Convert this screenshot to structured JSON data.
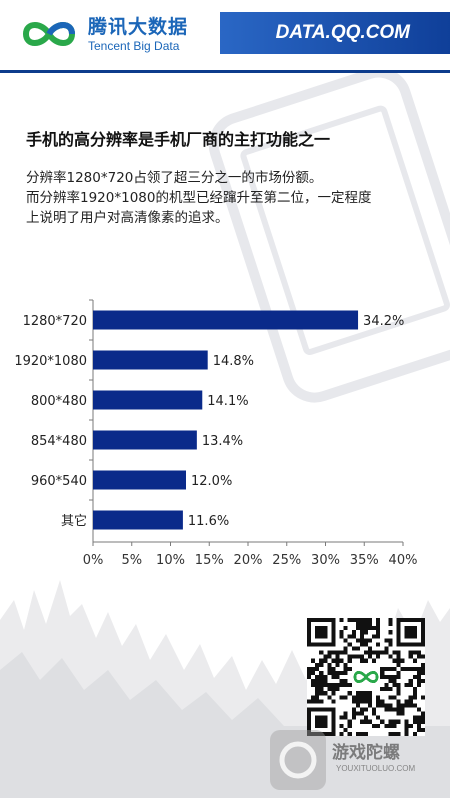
{
  "header": {
    "brand_cn": "腾讯大数据",
    "brand_en": "Tencent Big Data",
    "site": "DATA.QQ.COM"
  },
  "title": "手机的高分辨率是手机厂商的主打功能之一",
  "description": [
    "分辨率1280*720占领了超三分之一的市场份额。",
    "而分辨率1920*1080的机型已经蹿升至第二位，一定程度",
    "上说明了用户对高清像素的追求。"
  ],
  "chart_data": {
    "type": "bar",
    "orientation": "horizontal",
    "categories": [
      "1280*720",
      "1920*1080",
      "800*480",
      "854*480",
      "960*540",
      "其它"
    ],
    "values": [
      34.2,
      14.8,
      14.1,
      13.4,
      12.0,
      11.6
    ],
    "value_labels": [
      "34.2%",
      "14.8%",
      "14.1%",
      "13.4%",
      "12.0%",
      "11.6%"
    ],
    "xlim": [
      0,
      40
    ],
    "xticks": [
      "0%",
      "5%",
      "10%",
      "15%",
      "20%",
      "25%",
      "30%",
      "35%",
      "40%"
    ],
    "bar_color": "#0a2a8a",
    "grid": false
  },
  "watermark": {
    "text": "游戏陀螺",
    "url": "YOUXITUOLUO.COM"
  },
  "colors": {
    "brand_blue": "#1b66b8",
    "header_band": "#0f3f99"
  }
}
